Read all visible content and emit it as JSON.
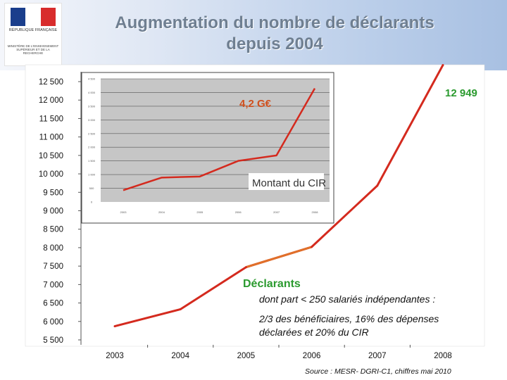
{
  "title_lines": [
    "Augmentation du nombre de déclarants",
    "depuis 2004"
  ],
  "logo": {
    "republique": "RÉPUBLIQUE FRANÇAISE",
    "ministere": "MINISTÈRE DE L'ENSEIGNEMENT SUPÉRIEUR ET DE LA RECHERCHE"
  },
  "chart_data": [
    {
      "type": "line",
      "x": [
        "2003",
        "2004",
        "2005",
        "2006",
        "2007",
        "2008"
      ],
      "series": [
        {
          "name": "Déclarants",
          "values": [
            5870,
            6330,
            7470,
            8020,
            9680,
            12949
          ],
          "color": "#d42a1e"
        }
      ],
      "y_ticks": [
        "5 500",
        "6 000",
        "6 500",
        "7 000",
        "7 500",
        "8 000",
        "8 500",
        "9 000",
        "9 500",
        "10 000",
        "10 500",
        "11 000",
        "11 500",
        "12 000",
        "12 500"
      ],
      "ylim": [
        5500,
        12500
      ],
      "grid": false,
      "annotations": {
        "end_value": "12 949",
        "legend_label": "Déclarants",
        "detail_1": "dont part < 250 salariés indépendantes :",
        "detail_2": "2/3 des bénéficiaires, 16% des dépenses",
        "detail_3": "déclarées et 20% du CIR",
        "source": "Source : MESR- DGRI-C1, chiffres mai 2010"
      }
    },
    {
      "type": "line",
      "x": [
        "2003",
        "2004",
        "2005",
        "2006",
        "2007",
        "2008"
      ],
      "series": [
        {
          "name": "Montant du CIR",
          "values": [
            430,
            890,
            930,
            1500,
            1700,
            4150
          ],
          "color": "#d42a1e"
        }
      ],
      "ylim": [
        0,
        4500
      ],
      "grid": true,
      "annotations": {
        "value_label": "4,2 G€",
        "label": "Montant du CIR"
      }
    }
  ]
}
